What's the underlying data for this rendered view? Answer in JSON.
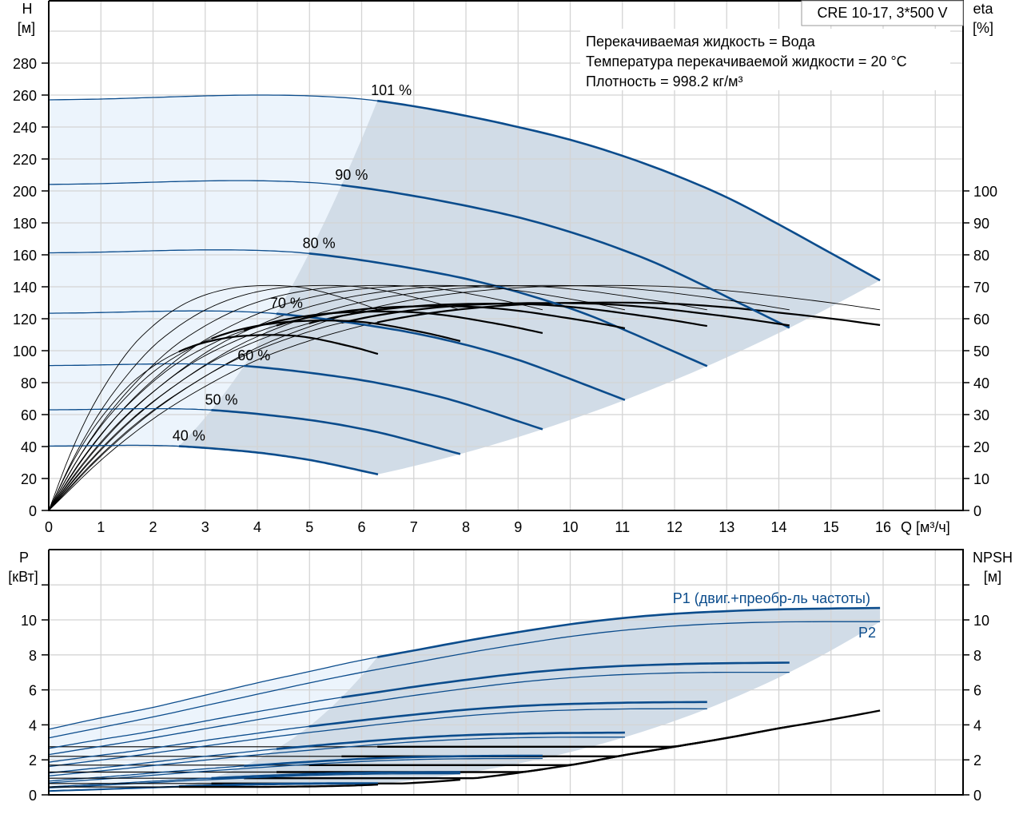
{
  "chart_data": [
    {
      "type": "line",
      "title": "CRE 10-17, 3*500 V",
      "info_lines": [
        "Перекачиваемая жидкость = Вода",
        "Температура перекачиваемой жидкости = 20 °C",
        "Плотность = 998.2 кг/м³"
      ],
      "ylabel": [
        "H",
        "[м]"
      ],
      "y2label": [
        "eta",
        "[%]"
      ],
      "xlabel": "Q [м³/ч]",
      "xlim": [
        0,
        17.53
      ],
      "ylim": [
        0,
        319.5
      ],
      "y2_scale_note": "eta 100 aligned with H 200",
      "xticks": [
        0,
        1,
        2,
        3,
        4,
        5,
        6,
        7,
        8,
        9,
        10,
        11,
        12,
        13,
        14,
        15,
        16
      ],
      "xgrid": [
        0,
        1,
        2,
        3,
        4,
        5,
        6,
        7,
        8,
        9,
        10,
        11,
        12,
        13,
        14,
        15,
        16,
        17
      ],
      "yticks": [
        0,
        20,
        40,
        60,
        80,
        100,
        120,
        140,
        160,
        180,
        200,
        220,
        240,
        260,
        280
      ],
      "ygrid": [
        0,
        20,
        40,
        60,
        80,
        100,
        120,
        140,
        160,
        180,
        200,
        220,
        240,
        260,
        280,
        300
      ],
      "y2ticks": [
        0,
        10,
        20,
        30,
        40,
        50,
        60,
        70,
        80,
        90,
        100
      ],
      "grid": true,
      "speeds": [
        101,
        90,
        80,
        70,
        60,
        50,
        40
      ],
      "speed_labels": [
        "101 %",
        "90 %",
        "80 %",
        "70 %",
        "60 %",
        "50 %",
        "40 %"
      ],
      "base_speed": 101,
      "base_Q": [
        0,
        1,
        2,
        3,
        4,
        5,
        6,
        7,
        8,
        9,
        10,
        11,
        12,
        13,
        14,
        15,
        15.94
      ],
      "head_base": [
        257,
        257.5,
        258.5,
        259.5,
        260,
        259.5,
        257.5,
        253,
        247,
        240,
        232,
        222,
        210,
        196,
        179,
        161,
        144
      ],
      "pump_eta_base": [
        0,
        17,
        31,
        42,
        51,
        57.5,
        62.5,
        66,
        68.3,
        69.7,
        70.3,
        70.4,
        70,
        68.8,
        67,
        65,
        62.8
      ],
      "total_eta_factor": [
        0.924,
        0.922,
        0.919,
        0.908,
        0.884,
        0.844,
        0.78
      ],
      "operating_Q_start_base": 6.3,
      "colors": {
        "curve": "#0b4c8c",
        "eta": "#000000",
        "light_region": "#ecf4fc",
        "dark_region": "#d1dce7",
        "grid": "#d4d4d4"
      }
    },
    {
      "type": "line",
      "ylabel": [
        "P",
        "[кВт]"
      ],
      "y2label": [
        "NPSH",
        "[м]"
      ],
      "ylim": [
        0,
        14
      ],
      "yticks": [
        0,
        2,
        4,
        6,
        8,
        10
      ],
      "ygrid": [
        0,
        2,
        4,
        6,
        8,
        10,
        12
      ],
      "y2ticks": [
        0,
        2,
        4,
        6,
        8,
        10
      ],
      "grid": true,
      "p1_label": "P1 (двиг.+преобр-ль частоты)",
      "p2_label": "P2",
      "P1_base": [
        3.75,
        4.4,
        5.0,
        5.7,
        6.4,
        7.05,
        7.7,
        8.25,
        8.8,
        9.3,
        9.75,
        10.1,
        10.35,
        10.5,
        10.6,
        10.65,
        10.68
      ],
      "P2_base": [
        3.25,
        3.85,
        4.45,
        5.1,
        5.75,
        6.4,
        7.0,
        7.55,
        8.1,
        8.6,
        9.05,
        9.4,
        9.65,
        9.8,
        9.88,
        9.9,
        9.9
      ],
      "npsh_levels": [
        2.75,
        2.2,
        1.7,
        1.3,
        0.95,
        0.65,
        0.45
      ],
      "npsh_env_Q": [
        0,
        2,
        4,
        6,
        8,
        10,
        11,
        12,
        13,
        14,
        15,
        16
      ],
      "npsh_env": [
        0.35,
        0.4,
        0.45,
        0.55,
        0.9,
        1.7,
        2.25,
        2.75,
        3.25,
        3.8,
        4.3,
        4.85
      ]
    }
  ]
}
